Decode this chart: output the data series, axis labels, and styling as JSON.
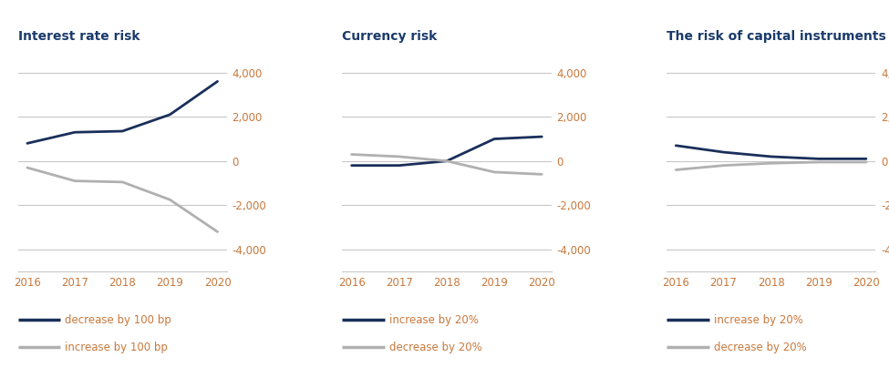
{
  "years": [
    2016,
    2017,
    2018,
    2019,
    2020
  ],
  "chart1": {
    "title": "Interest rate risk",
    "line1_label": "decrease by 100 bp",
    "line1_values": [
      800,
      1300,
      1350,
      2100,
      3600
    ],
    "line2_label": "increase by 100 bp",
    "line2_values": [
      -300,
      -900,
      -950,
      -1750,
      -3200
    ]
  },
  "chart2": {
    "title": "Currency risk",
    "line1_label": "increase by 20%",
    "line1_values": [
      -200,
      -200,
      0,
      1000,
      1100
    ],
    "line2_label": "decrease by 20%",
    "line2_values": [
      300,
      200,
      0,
      -500,
      -600
    ]
  },
  "chart3": {
    "title": "The risk of capital instruments prices",
    "line1_label": "increase by 20%",
    "line1_values": [
      700,
      400,
      200,
      100,
      100
    ],
    "line2_label": "decrease by 20%",
    "line2_values": [
      -400,
      -200,
      -100,
      -50,
      -50
    ]
  },
  "dark_color": "#1a2f5a",
  "light_color": "#b0b0b0",
  "title_color": "#1a3a6b",
  "tick_color": "#c8783c",
  "axis_color": "#c8c8c8",
  "legend_text_color": "#c8783c",
  "xtick_color": "#c8783c",
  "ylim": [
    -5000,
    5000
  ],
  "yticks": [
    -4000,
    -2000,
    0,
    2000,
    4000
  ],
  "background_color": "#ffffff"
}
